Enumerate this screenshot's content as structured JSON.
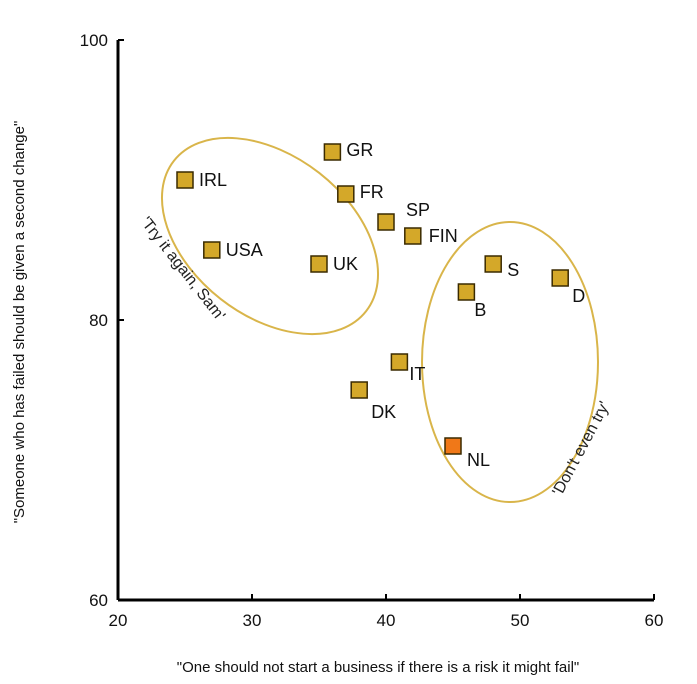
{
  "chart_data": {
    "type": "scatter",
    "title": "",
    "xlabel": "\"One should not start a business if there is a risk it might fail\"",
    "ylabel": "\"Someone who has failed should be given a second change\"",
    "xlim": [
      20,
      60
    ],
    "ylim": [
      60,
      100
    ],
    "xticks": [
      "20",
      "30",
      "40",
      "50",
      "60"
    ],
    "yticks": [
      "60",
      "80",
      "100"
    ],
    "grid": false,
    "points": [
      {
        "label": "IRL",
        "x": 25,
        "y": 90,
        "color": "#d4a829"
      },
      {
        "label": "USA",
        "x": 27,
        "y": 85,
        "color": "#d4a829"
      },
      {
        "label": "GR",
        "x": 36,
        "y": 92,
        "color": "#d4a829"
      },
      {
        "label": "FR",
        "x": 37,
        "y": 89,
        "color": "#d4a829"
      },
      {
        "label": "SP",
        "x": 40,
        "y": 87,
        "color": "#d4a829"
      },
      {
        "label": "FIN",
        "x": 42,
        "y": 86,
        "color": "#d4a829"
      },
      {
        "label": "UK",
        "x": 35,
        "y": 84,
        "color": "#d4a829"
      },
      {
        "label": "S",
        "x": 48,
        "y": 84,
        "color": "#d4a829"
      },
      {
        "label": "D",
        "x": 53,
        "y": 83,
        "color": "#d4a829"
      },
      {
        "label": "B",
        "x": 46,
        "y": 82,
        "color": "#d4a829"
      },
      {
        "label": "IT",
        "x": 41,
        "y": 77,
        "color": "#d4a829"
      },
      {
        "label": "DK",
        "x": 38,
        "y": 75,
        "color": "#d4a829"
      },
      {
        "label": "NL",
        "x": 45,
        "y": 71,
        "color": "#f07818"
      }
    ],
    "groups": [
      {
        "annotation": "'Try it again, Sam'",
        "members": [
          "IRL",
          "USA",
          "UK"
        ],
        "outline_color": "#d9b54a"
      },
      {
        "annotation": "'Don't even try'",
        "members": [
          "S",
          "D",
          "B",
          "IT",
          "NL"
        ],
        "outline_color": "#d9b54a"
      }
    ]
  },
  "colors": {
    "marker_default": "#d4a829",
    "marker_highlight": "#f07818",
    "marker_border": "#3a2a00",
    "ellipse": "#d9b54a",
    "axis": "#000000"
  }
}
